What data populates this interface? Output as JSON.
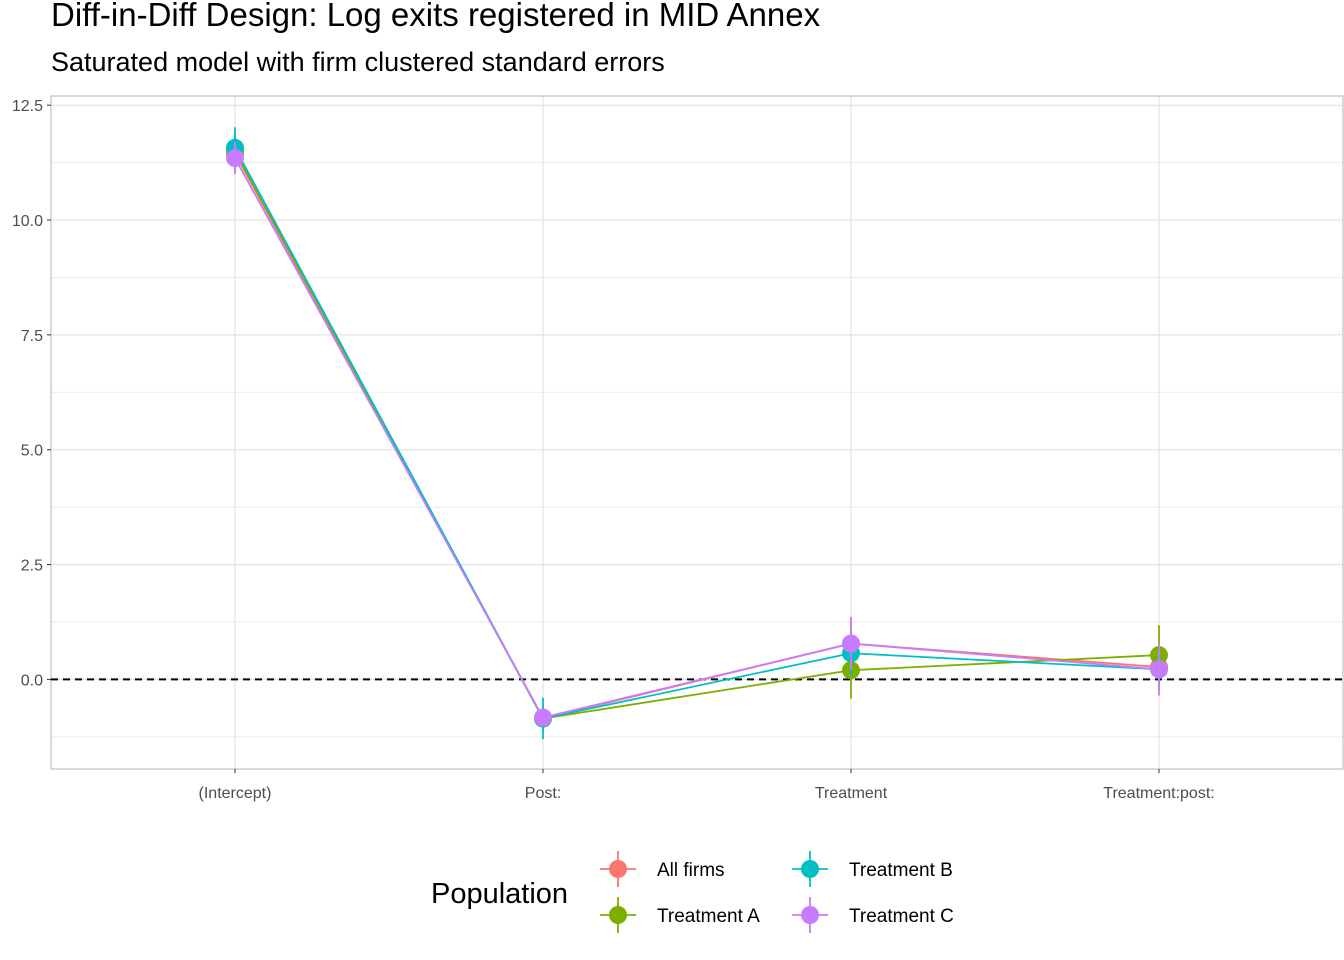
{
  "chart_data": {
    "type": "line",
    "title": "Diff-in-Diff Design: Log exits registered in MID Annex",
    "subtitle": "Saturated model with firm clustered standard errors",
    "xlabel": "",
    "ylabel": "",
    "categories": [
      "(Intercept)",
      "Post:",
      "Treatment",
      "Treatment:post:"
    ],
    "ylim": [
      -1.95,
      12.7
    ],
    "yticks": [
      0.0,
      2.5,
      5.0,
      7.5,
      10.0,
      12.5
    ],
    "ytick_labels": [
      "0.0",
      "2.5",
      "5.0",
      "7.5",
      "10.0",
      "12.5"
    ],
    "grid": true,
    "reference_line": {
      "y": 0,
      "style": "dashed",
      "color": "#000000"
    },
    "legend": {
      "title": "Population",
      "placement": "bottom"
    },
    "series": [
      {
        "name": "All firms",
        "color": "#F8766D",
        "values": [
          11.45,
          -0.85,
          0.78,
          0.27
        ],
        "lower": [
          11.05,
          -1.1,
          0.2,
          -0.25
        ],
        "upper": [
          11.85,
          -0.6,
          1.36,
          0.79
        ]
      },
      {
        "name": "Treatment A",
        "color": "#7CAE00",
        "values": [
          11.5,
          -0.85,
          0.2,
          0.53
        ],
        "lower": [
          11.1,
          -1.12,
          -0.42,
          -0.12
        ],
        "upper": [
          11.9,
          -0.58,
          0.82,
          1.18
        ]
      },
      {
        "name": "Treatment B",
        "color": "#00BFC4",
        "values": [
          11.57,
          -0.85,
          0.57,
          0.22
        ],
        "lower": [
          11.12,
          -1.3,
          0.1,
          -0.22
        ],
        "upper": [
          12.02,
          -0.4,
          1.04,
          0.66
        ]
      },
      {
        "name": "Treatment C",
        "color": "#C77CFF",
        "values": [
          11.35,
          -0.83,
          0.78,
          0.22
        ],
        "lower": [
          11.0,
          -1.02,
          0.2,
          -0.35
        ],
        "upper": [
          11.7,
          -0.64,
          1.36,
          0.79
        ]
      }
    ]
  }
}
